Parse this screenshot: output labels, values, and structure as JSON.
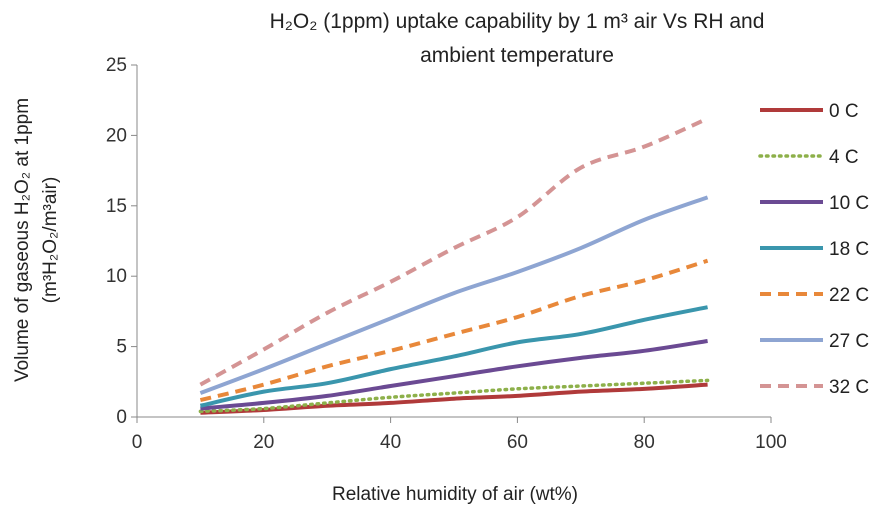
{
  "title_line1": "H₂O₂ (1ppm) uptake capability by 1 m³ air Vs RH and",
  "title_line2": "ambient temperature",
  "xlabel": "Relative humidity of air  (wt%)",
  "ylabel_line1": "Volume of gaseous H₂O₂ at 1ppm",
  "ylabel_line2": "(m³H₂O₂/m³air)",
  "chart_data": {
    "type": "line",
    "x": [
      10,
      20,
      30,
      40,
      50,
      60,
      70,
      80,
      90
    ],
    "xlim": [
      0,
      100
    ],
    "ylim": [
      0,
      25
    ],
    "xticks": [
      0,
      20,
      40,
      60,
      80,
      100
    ],
    "yticks": [
      0,
      5,
      10,
      15,
      20,
      25
    ],
    "grid": false,
    "legend_position": "right",
    "series": [
      {
        "name": "0 C",
        "color": "#b03a3a",
        "dash": "solid",
        "values": [
          0.3,
          0.5,
          0.8,
          1.0,
          1.3,
          1.5,
          1.8,
          2.0,
          2.3
        ]
      },
      {
        "name": "4 C",
        "color": "#8db04a",
        "dash": "dotted",
        "values": [
          0.4,
          0.6,
          1.0,
          1.4,
          1.7,
          2.0,
          2.2,
          2.4,
          2.6
        ]
      },
      {
        "name": "10 C",
        "color": "#6b4a93",
        "dash": "solid",
        "values": [
          0.6,
          1.0,
          1.5,
          2.2,
          2.9,
          3.6,
          4.2,
          4.7,
          5.4
        ]
      },
      {
        "name": "18 C",
        "color": "#3a96ad",
        "dash": "solid",
        "values": [
          0.8,
          1.8,
          2.4,
          3.4,
          4.3,
          5.3,
          5.9,
          6.9,
          7.8
        ]
      },
      {
        "name": "22 C",
        "color": "#e8883a",
        "dash": "dashed",
        "values": [
          1.2,
          2.3,
          3.6,
          4.7,
          5.9,
          7.1,
          8.6,
          9.7,
          11.1
        ]
      },
      {
        "name": "27 C",
        "color": "#8ea5d2",
        "dash": "solid",
        "values": [
          1.7,
          3.4,
          5.2,
          7.0,
          8.8,
          10.3,
          12.0,
          14.0,
          15.6
        ]
      },
      {
        "name": "32 C",
        "color": "#d49494",
        "dash": "dashed",
        "values": [
          2.3,
          4.8,
          7.4,
          9.6,
          12.0,
          14.2,
          17.7,
          19.2,
          21.2
        ]
      }
    ]
  }
}
